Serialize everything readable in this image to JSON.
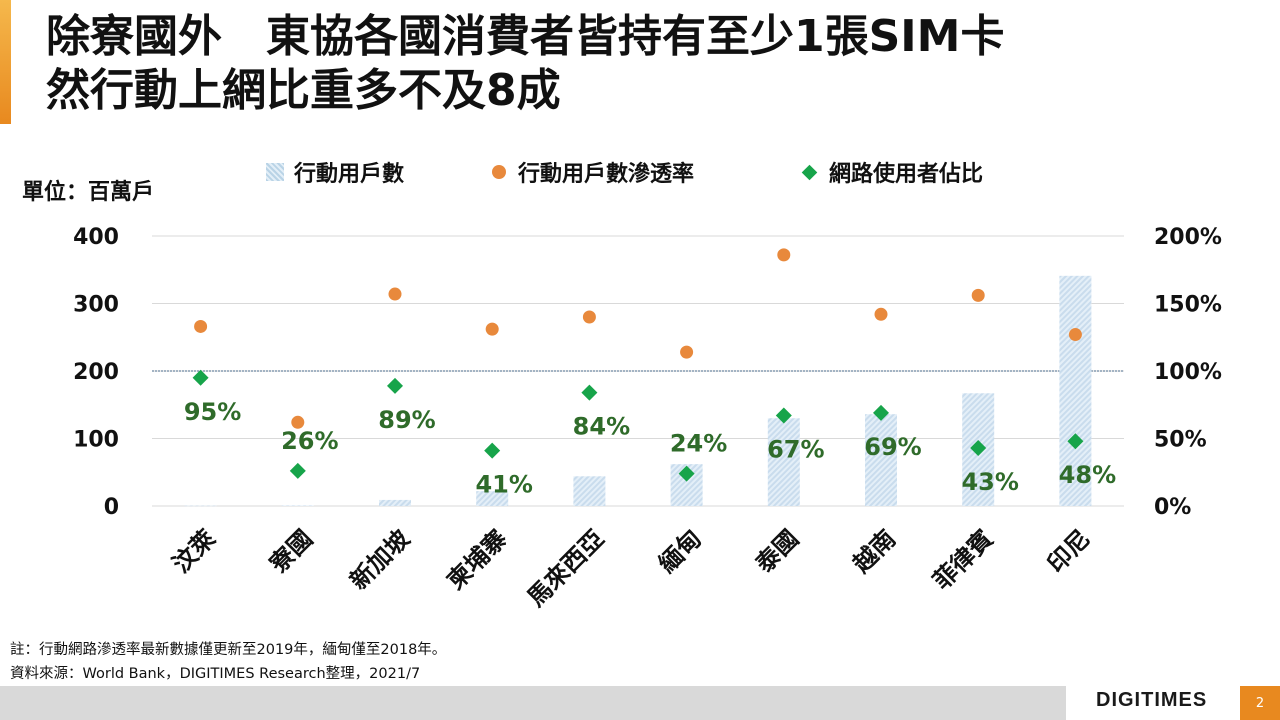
{
  "slide": {
    "title_line1": "除寮國外　東協各國消費者皆持有至少1張SIM卡",
    "title_line2": "然行動上網比重多不及8成",
    "unit_label": "單位：百萬戶",
    "note": "註：行動網路滲透率最新數據僅更新至2019年，緬甸僅至2018年。",
    "source": "資料來源：World Bank，DIGITIMES Research整理，2021/7",
    "logo": "DIGITIMES",
    "page_number": "2"
  },
  "colors": {
    "accent": "#e8891f",
    "bar": "#c9dced",
    "dot": "#e8893c",
    "diamond": "#17a44a",
    "diamond_label": "#2f6b2a"
  },
  "chart_data": {
    "type": "bar",
    "categories": [
      "汶萊",
      "寮國",
      "新加坡",
      "柬埔寨",
      "馬來西亞",
      "緬甸",
      "泰國",
      "越南",
      "菲律賓",
      "印尼"
    ],
    "series": [
      {
        "name": "行動用戶數",
        "axis": "left",
        "kind": "bar",
        "values": [
          0.5,
          0.8,
          9,
          22,
          44,
          62,
          130,
          136,
          167,
          341
        ]
      },
      {
        "name": "行動用戶數滲透率",
        "axis": "right",
        "kind": "dot",
        "values": [
          133,
          62,
          157,
          131,
          140,
          114,
          186,
          142,
          156,
          127
        ]
      },
      {
        "name": "網路使用者佔比",
        "axis": "right",
        "kind": "diamond",
        "values": [
          95,
          26,
          89,
          41,
          84,
          24,
          67,
          69,
          43,
          48
        ],
        "labels": [
          "95%",
          "26%",
          "89%",
          "41%",
          "84%",
          "24%",
          "67%",
          "69%",
          "43%",
          "48%"
        ]
      }
    ],
    "y_left": {
      "ylim": [
        0,
        400
      ],
      "ticks": [
        "0",
        "100",
        "200",
        "300",
        "400"
      ]
    },
    "y_right": {
      "ylim": [
        0,
        200
      ],
      "ticks": [
        "0%",
        "50%",
        "100%",
        "150%",
        "200%"
      ]
    },
    "reference_line": 100,
    "legend": [
      "行動用戶數",
      "行動用戶數滲透率",
      "網路使用者佔比"
    ],
    "legend_position": "top"
  }
}
